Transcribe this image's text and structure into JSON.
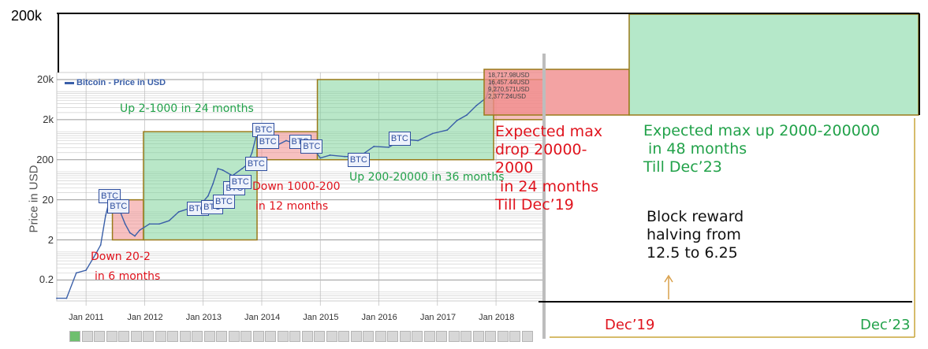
{
  "top_axis_label": "200k",
  "chart_data": {
    "type": "line",
    "title": "",
    "legend": "Bitcoin - Price in USD",
    "legend_position": "top-left",
    "ylabel": "Price in USD",
    "y_scale": "log",
    "ylim": [
      0.06,
      30000
    ],
    "y_ticks": [
      "20k",
      "2k",
      "200",
      "20",
      "2",
      "0.2"
    ],
    "x_ticks": [
      "Jan 2011",
      "Jan 2012",
      "Jan 2013",
      "Jan 2014",
      "Jan 2015",
      "Jan 2016",
      "Jan 2017",
      "Jan 2018"
    ],
    "grid": true,
    "series": [
      {
        "name": "Bitcoin - Price in USD",
        "x": [
          "2010-07",
          "2010-09",
          "2010-11",
          "2011-01",
          "2011-03",
          "2011-04",
          "2011-05",
          "2011-06",
          "2011-07",
          "2011-08",
          "2011-09",
          "2011-10",
          "2011-11",
          "2011-12",
          "2012-02",
          "2012-04",
          "2012-06",
          "2012-08",
          "2012-10",
          "2012-12",
          "2013-02",
          "2013-03",
          "2013-04",
          "2013-05",
          "2013-07",
          "2013-09",
          "2013-10",
          "2013-11",
          "2013-12",
          "2014-02",
          "2014-04",
          "2014-06",
          "2014-08",
          "2014-10",
          "2014-12",
          "2015-01",
          "2015-03",
          "2015-06",
          "2015-09",
          "2015-12",
          "2016-03",
          "2016-06",
          "2016-09",
          "2016-12",
          "2017-03",
          "2017-05",
          "2017-07",
          "2017-09",
          "2017-11",
          "2017-12",
          "2018-01",
          "2018-02",
          "2018-04"
        ],
        "values": [
          0.07,
          0.07,
          0.3,
          0.35,
          0.9,
          1.5,
          8,
          25,
          14,
          10,
          5,
          3,
          2.5,
          3.5,
          5,
          5,
          6,
          10,
          12,
          13,
          25,
          50,
          120,
          110,
          80,
          120,
          150,
          300,
          900,
          700,
          450,
          600,
          500,
          380,
          330,
          220,
          260,
          240,
          240,
          430,
          410,
          650,
          600,
          900,
          1100,
          1900,
          2600,
          4500,
          7000,
          18000,
          11000,
          9000,
          8000
        ]
      }
    ],
    "last_price_readout": [
      "18,717.98USD",
      "16,457.44USD",
      "9,270,571USD",
      "2,377.24USD"
    ],
    "btc_markers": [
      "BTC",
      "BTC",
      "BTC",
      "BTC",
      "BTC",
      "BTC",
      "BTC",
      "BTC",
      "BTC",
      "BTC",
      "BTC",
      "BTC",
      "BTC",
      "BTC"
    ],
    "annotations": {
      "up_2_1000": "Up 2-1000 in 24 months",
      "down_20_2_line1": "Down 20-2",
      "down_20_2_line2": "in 6 months",
      "down_1000_200_line1": "Down 1000-200",
      "down_1000_200_line2": "in 12 months",
      "up_200_20000": "Up 200-20000 in 36 months",
      "expected_drop": [
        "Expected max",
        "drop 20000-",
        "2000",
        " in 24 months",
        "Till Dec’19"
      ],
      "expected_up": [
        "Expected max up 2000-200000",
        " in 48 months",
        "Till Dec’23"
      ],
      "block_reward": [
        "Block reward",
        "halving from",
        "12.5 to 6.25"
      ]
    },
    "projection_dates": [
      "Dec’19",
      "Dec’23"
    ],
    "colors": {
      "line": "#3a5fa8",
      "rise_box": "#7fd39a",
      "fall_box": "#f08c8c",
      "box_border": "#9a7a1a",
      "red_text": "#e0141e",
      "green_text": "#22a24a"
    }
  }
}
